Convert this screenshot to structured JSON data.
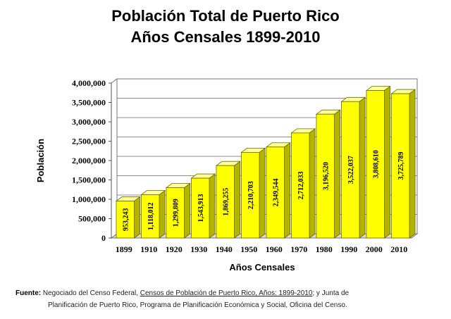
{
  "chart_data": {
    "type": "bar",
    "title": "Población Total de Puerto Rico",
    "subtitle": "Años Censales 1899-2010",
    "xlabel": "Años Censales",
    "ylabel": "Población",
    "categories": [
      "1899",
      "1910",
      "1920",
      "1930",
      "1940",
      "1950",
      "1960",
      "1970",
      "1980",
      "1990",
      "2000",
      "2010"
    ],
    "values": [
      953243,
      1118012,
      1299809,
      1543913,
      1869255,
      2210703,
      2349544,
      2712033,
      3196520,
      3522037,
      3808610,
      3725789
    ],
    "value_labels": [
      "953,243",
      "1,118,012",
      "1,299,809",
      "1,543,913",
      "1,869,255",
      "2,210,703",
      "2,349,544",
      "2,712,033",
      "3,196,520",
      "3,522,037",
      "3,808,610",
      "3,725,789"
    ],
    "ylim": [
      0,
      4000000
    ],
    "yticks": [
      0,
      500000,
      1000000,
      1500000,
      2000000,
      2500000,
      3000000,
      3500000,
      4000000
    ],
    "ytick_labels": [
      "0",
      "500,000",
      "1,000,000",
      "1,500,000",
      "2,000,000",
      "2,500,000",
      "3,000,000",
      "3,500,000",
      "4,000,000"
    ],
    "grid": true,
    "bar_color": "#ffff00"
  },
  "source": {
    "label": "Fuente:",
    "text_before": "Negociado del Censo Federal, ",
    "work": "Censos de Población de Puerto Rico, Años: 1899-2010",
    "text_after": "; y Junta de",
    "line2": "Planificación de Puerto Rico, Programa de Planificación Económica y Social, Oficina del Censo."
  }
}
